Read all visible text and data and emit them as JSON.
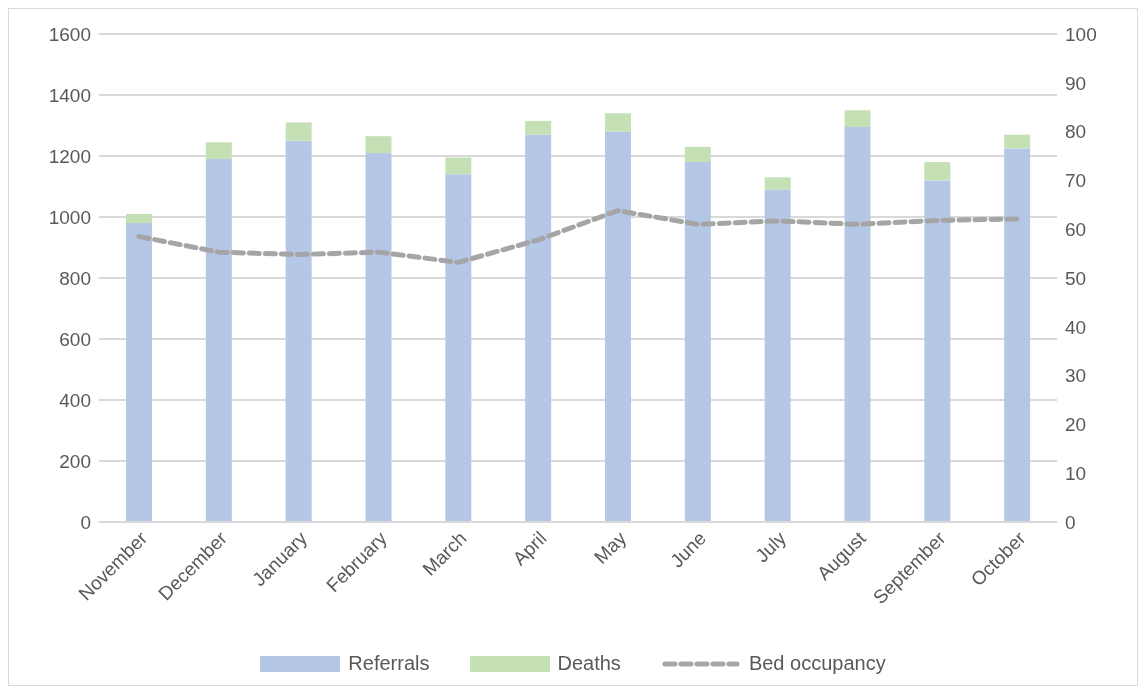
{
  "chart_data": {
    "type": "bar",
    "stacked": true,
    "categories": [
      "November",
      "December",
      "January",
      "February",
      "March",
      "April",
      "May",
      "June",
      "July",
      "August",
      "September",
      "October"
    ],
    "series": [
      {
        "name": "Referrals",
        "color": "#b4c7e7",
        "values": [
          980,
          1190,
          1250,
          1210,
          1140,
          1270,
          1280,
          1180,
          1090,
          1295,
          1120,
          1225
        ]
      },
      {
        "name": "Deaths",
        "color": "#c5e0b4",
        "values": [
          30,
          55,
          60,
          55,
          55,
          45,
          60,
          50,
          40,
          55,
          60,
          45
        ]
      },
      {
        "name": "Bed occupancy",
        "type": "line",
        "axis": "y2",
        "color": "#a5a5a5",
        "line_style": "dashed",
        "values": [
          58.5,
          55.3,
          54.8,
          55.3,
          53.2,
          57.8,
          63.8,
          61,
          61.7,
          61,
          61.8,
          62.1
        ]
      }
    ],
    "ylim": [
      0,
      1600
    ],
    "yticks": [
      0,
      200,
      400,
      600,
      800,
      1000,
      1200,
      1400,
      1600
    ],
    "y2lim": [
      0,
      100
    ],
    "y2ticks": [
      0,
      10,
      20,
      30,
      40,
      50,
      60,
      70,
      80,
      90,
      100
    ],
    "grid": "y",
    "legend": "bottom",
    "marker": "none"
  }
}
